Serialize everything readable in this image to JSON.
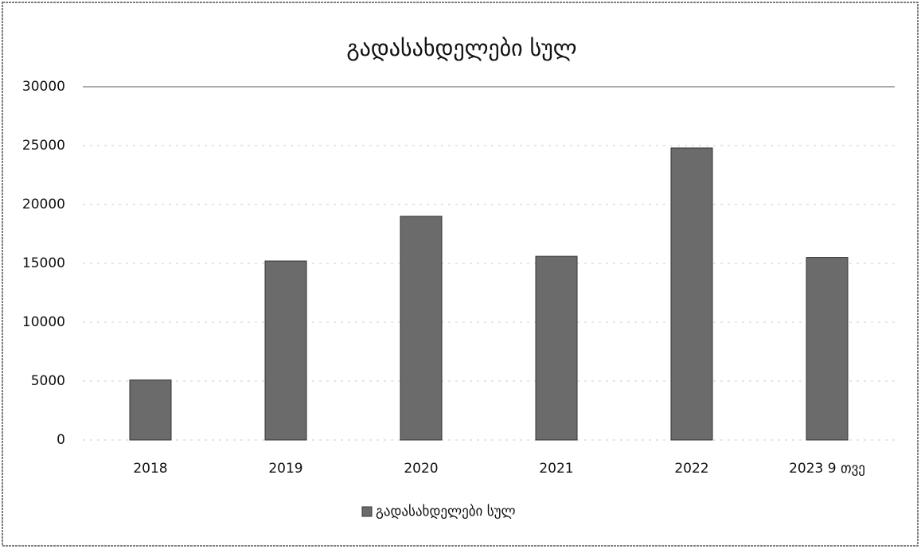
{
  "chart_data": {
    "type": "bar",
    "title": "გადასახდელები სულ",
    "categories": [
      "2018",
      "2019",
      "2020",
      "2021",
      "2022",
      "2023 9 თვე"
    ],
    "series": [
      {
        "name": "გადასახდელები სულ",
        "color": "#6b6b6b",
        "values": [
          5100,
          15200,
          19000,
          15600,
          24800,
          15500
        ]
      }
    ],
    "ylim": [
      0,
      30000
    ],
    "yticks": [
      0,
      5000,
      10000,
      15000,
      20000,
      25000,
      30000
    ],
    "grid": true,
    "legend": "bottom"
  }
}
